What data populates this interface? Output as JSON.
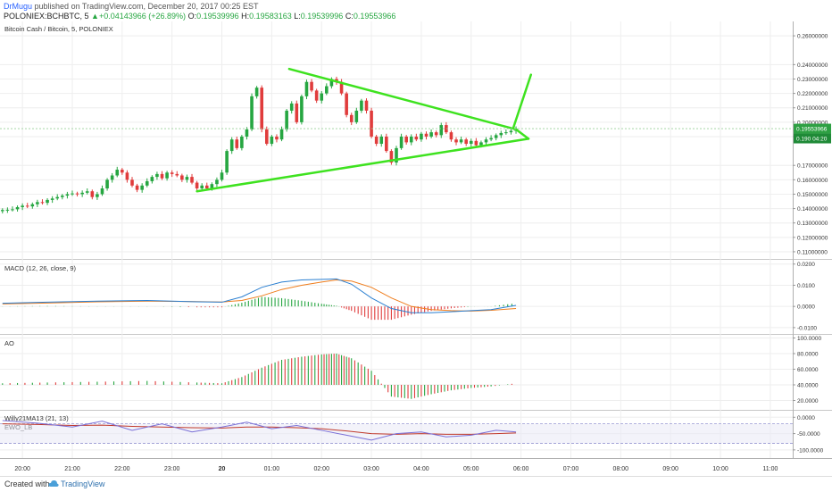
{
  "header": {
    "author": "DrMugu",
    "published": "published on TradingView.com, December 20, 2017 00:25 EST",
    "symbol": "POLONIEX:BCHBTC, 5",
    "change": "+0.04143966 (+26.89%)",
    "open_label": "O:",
    "open": "0.19539996",
    "high_label": "H:",
    "high": "0.19583163",
    "low_label": "L:",
    "low": "0.19539996",
    "close_label": "C:",
    "close": "0.19553966"
  },
  "colors": {
    "up": "#26a641",
    "down": "#e03c3c",
    "pattern": "#3ee21f",
    "macd": "#2a7fd1",
    "signal": "#ef7d1c",
    "ewo": "#7a6fd6"
  },
  "chart_data": [
    {
      "type": "candlestick",
      "title": "Bitcoin Cash / Bitcoin, 5, POLONIEX",
      "ylim": [
        0.105,
        0.27
      ],
      "y_ticks": [
        "0.26000000",
        "0.24000000",
        "0.23000000",
        "0.22000000",
        "0.21000000",
        "0.20000000",
        "0.19000000",
        "0.17000000",
        "0.16000000",
        "0.15000000",
        "0.14000000",
        "0.13000000",
        "0.12000000",
        "0.11000000"
      ],
      "y_tick_values": [
        0.26,
        0.24,
        0.23,
        0.22,
        0.21,
        0.2,
        0.19,
        0.17,
        0.16,
        0.15,
        0.14,
        0.13,
        0.12,
        0.11
      ],
      "last_price_label": "0.19553966",
      "countdown_label": "0.190 04:20",
      "x_ticks": [
        "20:00",
        "21:00",
        "22:00",
        "23:00",
        "20",
        "01:00",
        "02:00",
        "03:00",
        "04:00",
        "05:00",
        "06:00",
        "07:00",
        "08:00",
        "09:00",
        "10:00",
        "11:00"
      ],
      "x_tick_hours": [
        20,
        21,
        22,
        23,
        24,
        25,
        26,
        27,
        28,
        29,
        30,
        31,
        32,
        33,
        34,
        35
      ],
      "x_range_hours": [
        19.55,
        35.45
      ],
      "candles": [
        [
          19.6,
          0.139
        ],
        [
          19.7,
          0.1392
        ],
        [
          19.8,
          0.1395
        ],
        [
          19.9,
          0.141
        ],
        [
          20.0,
          0.142
        ],
        [
          20.1,
          0.1415
        ],
        [
          20.2,
          0.143
        ],
        [
          20.3,
          0.1445
        ],
        [
          20.4,
          0.144
        ],
        [
          20.5,
          0.146
        ],
        [
          20.6,
          0.147
        ],
        [
          20.7,
          0.148
        ],
        [
          20.8,
          0.149
        ],
        [
          20.9,
          0.15
        ],
        [
          21.0,
          0.1505
        ],
        [
          21.1,
          0.15
        ],
        [
          21.2,
          0.151
        ],
        [
          21.3,
          0.152
        ],
        [
          21.4,
          0.148
        ],
        [
          21.5,
          0.15
        ],
        [
          21.6,
          0.154
        ],
        [
          21.7,
          0.16
        ],
        [
          21.8,
          0.163
        ],
        [
          21.9,
          0.167
        ],
        [
          22.0,
          0.165
        ],
        [
          22.1,
          0.16
        ],
        [
          22.2,
          0.156
        ],
        [
          22.3,
          0.153
        ],
        [
          22.4,
          0.156
        ],
        [
          22.5,
          0.159
        ],
        [
          22.6,
          0.162
        ],
        [
          22.7,
          0.164
        ],
        [
          22.8,
          0.161
        ],
        [
          22.9,
          0.165
        ],
        [
          23.0,
          0.164
        ],
        [
          23.1,
          0.163
        ],
        [
          23.2,
          0.16
        ],
        [
          23.3,
          0.162
        ],
        [
          23.4,
          0.158
        ],
        [
          23.5,
          0.154
        ],
        [
          23.6,
          0.156
        ],
        [
          23.7,
          0.154
        ],
        [
          23.8,
          0.157
        ],
        [
          23.9,
          0.16
        ],
        [
          24.0,
          0.165
        ],
        [
          24.1,
          0.18
        ],
        [
          24.2,
          0.188
        ],
        [
          24.3,
          0.182
        ],
        [
          24.4,
          0.19
        ],
        [
          24.5,
          0.195
        ],
        [
          24.6,
          0.218
        ],
        [
          24.7,
          0.224
        ],
        [
          24.8,
          0.195
        ],
        [
          24.9,
          0.185
        ],
        [
          25.0,
          0.19
        ],
        [
          25.1,
          0.188
        ],
        [
          25.2,
          0.195
        ],
        [
          25.3,
          0.208
        ],
        [
          25.4,
          0.213
        ],
        [
          25.5,
          0.2
        ],
        [
          25.6,
          0.218
        ],
        [
          25.7,
          0.228
        ],
        [
          25.8,
          0.222
        ],
        [
          25.9,
          0.215
        ],
        [
          26.0,
          0.22
        ],
        [
          26.1,
          0.225
        ],
        [
          26.2,
          0.23
        ],
        [
          26.3,
          0.228
        ],
        [
          26.4,
          0.22
        ],
        [
          26.5,
          0.205
        ],
        [
          26.6,
          0.2
        ],
        [
          26.7,
          0.208
        ],
        [
          26.8,
          0.215
        ],
        [
          26.9,
          0.208
        ],
        [
          27.0,
          0.19
        ],
        [
          27.1,
          0.185
        ],
        [
          27.2,
          0.19
        ],
        [
          27.3,
          0.18
        ],
        [
          27.4,
          0.172
        ],
        [
          27.5,
          0.182
        ],
        [
          27.6,
          0.19
        ],
        [
          27.7,
          0.186
        ],
        [
          27.8,
          0.19
        ],
        [
          27.9,
          0.188
        ],
        [
          28.0,
          0.192
        ],
        [
          28.1,
          0.19
        ],
        [
          28.2,
          0.193
        ],
        [
          28.3,
          0.191
        ],
        [
          28.4,
          0.198
        ],
        [
          28.5,
          0.193
        ],
        [
          28.6,
          0.188
        ],
        [
          28.7,
          0.186
        ],
        [
          28.8,
          0.188
        ],
        [
          28.9,
          0.185
        ],
        [
          29.0,
          0.187
        ],
        [
          29.1,
          0.184
        ],
        [
          29.2,
          0.186
        ],
        [
          29.3,
          0.188
        ],
        [
          29.4,
          0.189
        ],
        [
          29.5,
          0.191
        ],
        [
          29.6,
          0.1925
        ],
        [
          29.7,
          0.193
        ],
        [
          29.8,
          0.194
        ],
        [
          29.9,
          0.1955
        ]
      ],
      "pattern": {
        "upper_trendline": [
          [
            25.35,
            0.237
          ],
          [
            29.9,
            0.195
          ]
        ],
        "lower_trendline": [
          [
            23.5,
            0.152
          ],
          [
            30.15,
            0.1885
          ]
        ],
        "apex_line": [
          [
            29.9,
            0.195
          ],
          [
            30.15,
            0.1885
          ]
        ],
        "breakout_arrow": [
          [
            29.85,
            0.1965
          ],
          [
            30.2,
            0.233
          ]
        ]
      }
    },
    {
      "type": "line",
      "title": "MACD (12, 26, close, 9)",
      "ylim": [
        -0.013,
        0.022
      ],
      "y_ticks": [
        "0.0200",
        "0.0100",
        "0.0000",
        "-0.0100"
      ],
      "y_tick_values": [
        0.02,
        0.01,
        0,
        -0.01
      ],
      "x": [
        19.6,
        20.5,
        21.5,
        22.5,
        23.5,
        24.0,
        24.4,
        24.8,
        25.2,
        25.6,
        26.0,
        26.3,
        26.6,
        27.0,
        27.4,
        27.8,
        28.2,
        28.6,
        29.0,
        29.4,
        29.9
      ],
      "series": [
        {
          "key": "macd",
          "values": [
            0.0015,
            0.002,
            0.0025,
            0.0028,
            0.0022,
            0.002,
            0.0045,
            0.009,
            0.0115,
            0.0125,
            0.0128,
            0.013,
            0.0105,
            0.004,
            -0.001,
            -0.003,
            -0.003,
            -0.0025,
            -0.002,
            -0.0015,
            0.0005
          ]
        },
        {
          "key": "signal",
          "values": [
            0.0012,
            0.0016,
            0.0022,
            0.0025,
            0.0023,
            0.0021,
            0.0028,
            0.005,
            0.008,
            0.01,
            0.0115,
            0.0125,
            0.012,
            0.009,
            0.004,
            0.0,
            -0.0015,
            -0.002,
            -0.0022,
            -0.0018,
            -0.001
          ]
        }
      ]
    },
    {
      "type": "bar",
      "title": "AO",
      "ylim": [
        8,
        104
      ],
      "baseline": 40,
      "y_ticks": [
        "100.0000",
        "80.0000",
        "60.0000",
        "40.0000",
        "20.0000"
      ],
      "y_tick_values": [
        100,
        80,
        60,
        40,
        20
      ],
      "x": [
        19.6,
        20.5,
        21.5,
        22.5,
        23.5,
        24.0,
        24.4,
        24.8,
        25.2,
        25.6,
        26.0,
        26.3,
        26.6,
        27.0,
        27.4,
        27.8,
        28.2,
        28.6,
        29.0,
        29.4,
        29.9
      ],
      "values": [
        42,
        43,
        44,
        45,
        43,
        42,
        50,
        62,
        72,
        76,
        79,
        80,
        74,
        58,
        25,
        22,
        28,
        33,
        36,
        38,
        42
      ]
    },
    {
      "type": "line",
      "title": "Willy21MA13 (21, 13)",
      "subtitle": "EWO_LB",
      "ylim": [
        -125,
        20
      ],
      "y_ticks": [
        "0.0000",
        "-50.0000",
        "-100.0000"
      ],
      "y_tick_values": [
        0,
        -50,
        -100
      ],
      "x": [
        19.6,
        20.3,
        21.0,
        21.6,
        22.2,
        22.8,
        23.4,
        24.0,
        24.5,
        25.0,
        25.5,
        26.0,
        26.5,
        27.0,
        27.5,
        28.0,
        28.5,
        29.0,
        29.5,
        29.9
      ],
      "series": [
        {
          "key": "willy",
          "values": [
            -10,
            -18,
            -30,
            -12,
            -40,
            -20,
            -45,
            -30,
            -15,
            -35,
            -25,
            -40,
            -55,
            -70,
            -50,
            -45,
            -60,
            -55,
            -40,
            -45
          ]
        },
        {
          "key": "willy_ma",
          "values": [
            -20,
            -22,
            -25,
            -24,
            -28,
            -30,
            -32,
            -33,
            -30,
            -30,
            -32,
            -35,
            -42,
            -50,
            -52,
            -50,
            -52,
            -52,
            -50,
            -48
          ]
        }
      ]
    }
  ],
  "footer": {
    "created_with": "Created with",
    "brand": "TradingView"
  }
}
